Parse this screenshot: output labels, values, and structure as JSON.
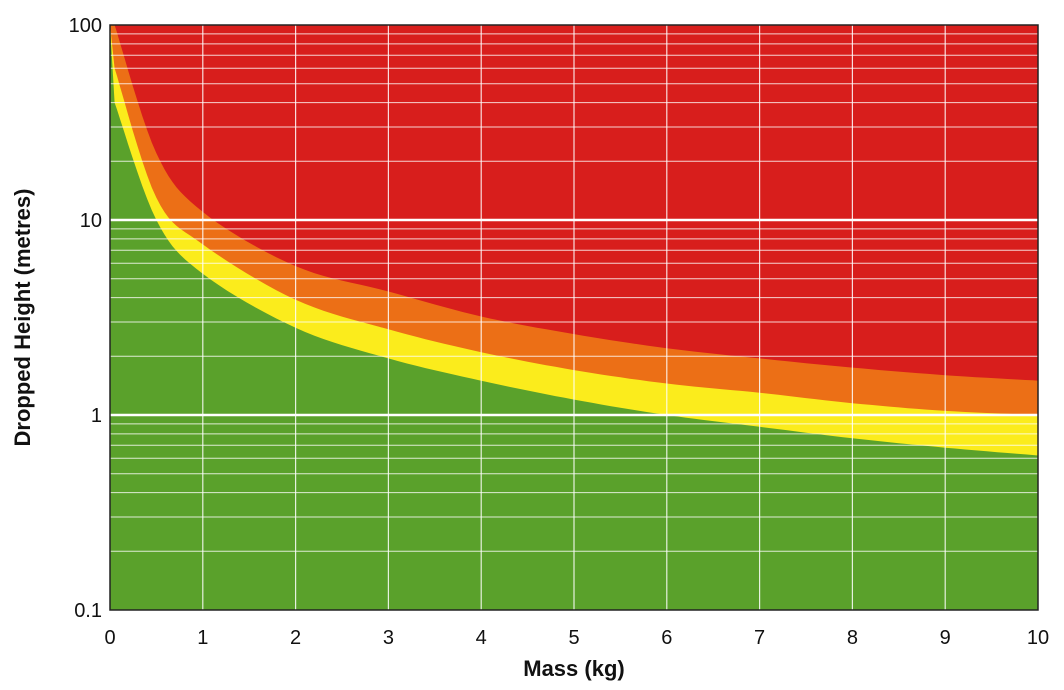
{
  "chart_data": {
    "type": "area",
    "title": "",
    "xlabel": "Mass (kg)",
    "ylabel": "Dropped Height (metres)",
    "xlim": [
      0,
      10
    ],
    "ylim": [
      0.1,
      100
    ],
    "yscale": "log",
    "grid": true,
    "legend": "none",
    "x_ticks": [
      "0",
      "1",
      "2",
      "3",
      "4",
      "5",
      "6",
      "7",
      "8",
      "9",
      "10"
    ],
    "y_ticks": [
      "0.1",
      "1",
      "10",
      "100"
    ],
    "zones": [
      {
        "color": "#d81e1c",
        "from": "red-orange boundary",
        "to": "top"
      },
      {
        "color": "#ec6f16",
        "from": "orange-yellow boundary",
        "to": "red-orange boundary"
      },
      {
        "color": "#fbec1c",
        "from": "yellow-green boundary",
        "to": "orange-yellow boundary"
      },
      {
        "color": "#5aa12b",
        "from": "bottom",
        "to": "yellow-green boundary"
      }
    ],
    "series": [
      {
        "color": "#d81e1c",
        "x": [
          0.05,
          0.5,
          1,
          2,
          3,
          4,
          5,
          6,
          7,
          8,
          9,
          10
        ],
        "values": [
          100,
          22,
          11,
          5.8,
          4.3,
          3.2,
          2.6,
          2.2,
          1.95,
          1.75,
          1.6,
          1.5
        ]
      },
      {
        "color": "#ec6f16",
        "x": [
          0.05,
          0.5,
          1,
          2,
          3,
          4,
          5,
          6,
          7,
          8,
          9,
          10
        ],
        "values": [
          60,
          13,
          7.5,
          3.9,
          2.75,
          2.1,
          1.7,
          1.45,
          1.3,
          1.15,
          1.05,
          1.0
        ]
      },
      {
        "color": "#fbec1c",
        "x": [
          0.05,
          0.5,
          1,
          2,
          3,
          4,
          5,
          6,
          7,
          8,
          9,
          10
        ],
        "values": [
          40,
          10,
          5.3,
          2.8,
          1.95,
          1.5,
          1.2,
          1.0,
          0.87,
          0.76,
          0.68,
          0.62
        ]
      }
    ]
  }
}
